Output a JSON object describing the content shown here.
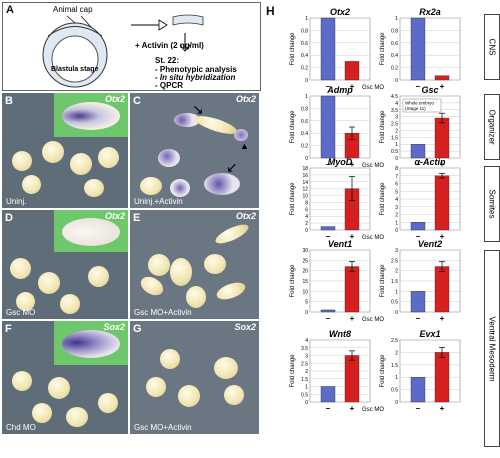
{
  "panel_a": {
    "label": "A",
    "animal_cap": "Animal cap",
    "blastula": "Blastula stage",
    "activin": "+ Activin (2 ng/ml)",
    "stage": "St. 22:",
    "bullets": [
      "- Phenotypic analysis",
      "- In situ hybridization",
      "- QPCR"
    ]
  },
  "photos": [
    {
      "label": "B",
      "gene": "Otx2",
      "caption": "Uninj."
    },
    {
      "label": "C",
      "gene": "Otx2",
      "caption": "Uninj.+Activin"
    },
    {
      "label": "D",
      "gene": "Otx2",
      "caption": "Gsc MO"
    },
    {
      "label": "E",
      "gene": "Otx2",
      "caption": "Gsc MO+Activin"
    },
    {
      "label": "F",
      "gene": "Sox2",
      "caption": "Chd MO"
    },
    {
      "label": "G",
      "gene": "Sox2",
      "caption": "Gsc MO+Activin"
    }
  ],
  "panel_h_label": "H",
  "colors": {
    "control": "#5b6bc7",
    "treated": "#d62020"
  },
  "sidebars": [
    "CNS",
    "Organizer",
    "Somites",
    "Ventral Mesoderm"
  ],
  "gsc_mo_label": "Gsc MO",
  "chart_data": [
    {
      "type": "bar",
      "title": "Otx2",
      "ylabel": "Fold change",
      "categories": [
        "–",
        "+"
      ],
      "values": [
        1,
        0.3
      ],
      "ylim": [
        0,
        1
      ],
      "yticks": [
        "0",
        "0.2",
        "0.4",
        "0.6",
        "0.8",
        "1"
      ]
    },
    {
      "type": "bar",
      "title": "Rx2a",
      "ylabel": "Fold change",
      "categories": [
        "–",
        "+"
      ],
      "values": [
        1,
        0.07
      ],
      "ylim": [
        0,
        1
      ],
      "yticks": [
        "0",
        "0.2",
        "0.4",
        "0.6",
        "0.8",
        "1"
      ]
    },
    {
      "type": "bar",
      "title": "Admp",
      "ylabel": "Fold change",
      "categories": [
        "–",
        "+"
      ],
      "values": [
        1,
        0.4
      ],
      "errors": [
        0,
        0.1
      ],
      "ylim": [
        0,
        1
      ],
      "yticks": [
        "0",
        "0.2",
        "0.4",
        "0.6",
        "0.8",
        "1"
      ]
    },
    {
      "type": "bar",
      "title": "Gsc",
      "ylabel": "Fold change",
      "categories": [
        "–",
        "+"
      ],
      "values": [
        1,
        2.9
      ],
      "errors": [
        0,
        0.35
      ],
      "ylim": [
        0,
        4.5
      ],
      "yticks": [
        "0",
        "0.5",
        "1",
        "1.5",
        "2",
        "2.5",
        "3",
        "3.5",
        "4",
        "4.5"
      ],
      "annotation": [
        "Whole embryo",
        "(Stage 11)"
      ]
    },
    {
      "type": "bar",
      "title": "MyoD",
      "ylabel": "Fold change",
      "categories": [
        "–",
        "+"
      ],
      "values": [
        1,
        12
      ],
      "errors": [
        0,
        3.5
      ],
      "ylim": [
        0,
        18
      ],
      "yticks": [
        "0",
        "2",
        "4",
        "6",
        "8",
        "10",
        "12",
        "14",
        "16",
        "18"
      ]
    },
    {
      "type": "bar",
      "title": "α-Actin",
      "ylabel": "Fold change",
      "categories": [
        "–",
        "+"
      ],
      "values": [
        1,
        7
      ],
      "errors": [
        0,
        0.3
      ],
      "ylim": [
        0,
        8
      ],
      "yticks": [
        "0",
        "1",
        "2",
        "3",
        "4",
        "5",
        "6",
        "7",
        "8"
      ]
    },
    {
      "type": "bar",
      "title": "Vent1",
      "ylabel": "Fold change",
      "categories": [
        "–",
        "+"
      ],
      "values": [
        1,
        22
      ],
      "errors": [
        0,
        2.5
      ],
      "ylim": [
        0,
        30
      ],
      "yticks": [
        "0",
        "5",
        "10",
        "15",
        "20",
        "25",
        "30"
      ]
    },
    {
      "type": "bar",
      "title": "Vent2",
      "ylabel": "Fold change",
      "categories": [
        "–",
        "+"
      ],
      "values": [
        1,
        2.2
      ],
      "errors": [
        0,
        0.25
      ],
      "ylim": [
        0,
        3
      ],
      "yticks": [
        "0",
        "0.5",
        "1",
        "1.5",
        "2",
        "2.5",
        "3"
      ]
    },
    {
      "type": "bar",
      "title": "Wnt8",
      "ylabel": "Fold change",
      "categories": [
        "–",
        "+"
      ],
      "values": [
        1,
        3
      ],
      "errors": [
        0,
        0.3
      ],
      "ylim": [
        0,
        4
      ],
      "yticks": [
        "0",
        "0.5",
        "1",
        "1.5",
        "2",
        "2.5",
        "3",
        "3.5",
        "4"
      ]
    },
    {
      "type": "bar",
      "title": "Evx1",
      "ylabel": "Fold change",
      "categories": [
        "–",
        "+"
      ],
      "values": [
        1,
        2
      ],
      "errors": [
        0,
        0.2
      ],
      "ylim": [
        0,
        2.5
      ],
      "yticks": [
        "0",
        "0.5",
        "1",
        "1.5",
        "2",
        "2.5"
      ]
    }
  ]
}
